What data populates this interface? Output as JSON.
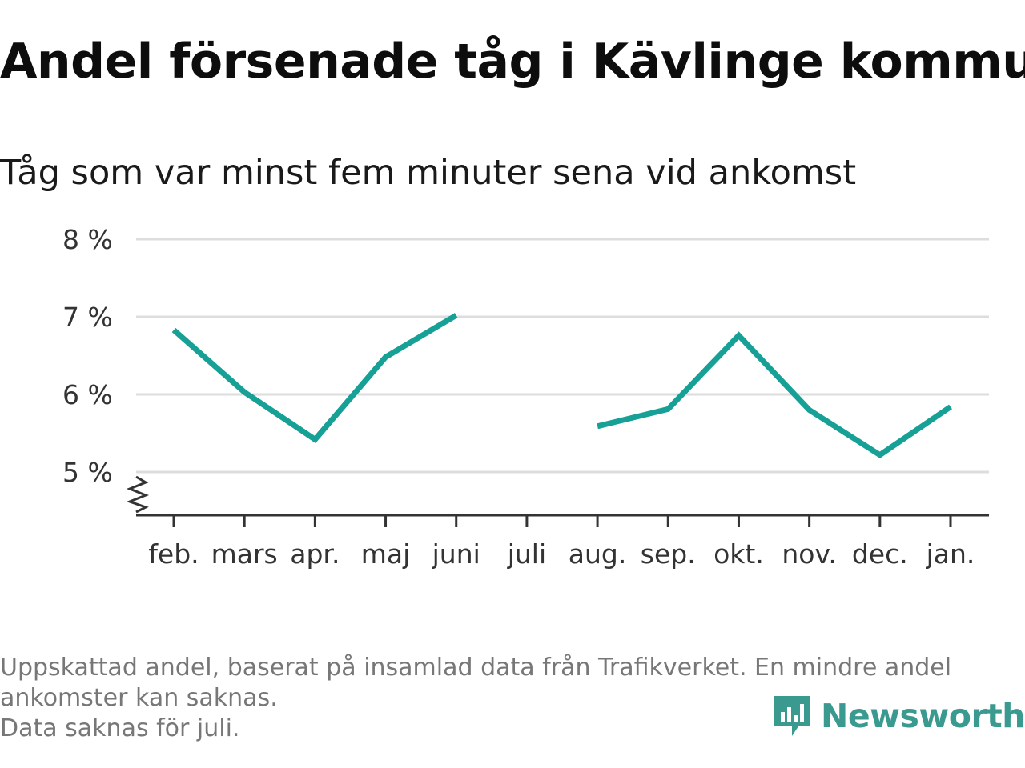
{
  "title": "Andel försenade tåg i Kävlinge kommun",
  "subtitle": "Tåg som var minst fem minuter sena vid ankomst",
  "footer": {
    "line1": "Uppskattad andel, baserat på insamlad data från Trafikverket. En mindre andel",
    "line2": "ankomster kan saknas.",
    "line3": "Data saknas för juli."
  },
  "brand": {
    "name": "Newsworthy",
    "color": "#3a9a8f",
    "icon": "newsworthy-logo-icon"
  },
  "colors": {
    "line": "#16a096",
    "grid": "#dddddd",
    "axis": "#333333"
  },
  "chart_data": {
    "type": "line",
    "title": "Andel försenade tåg i Kävlinge kommun",
    "subtitle": "Tåg som var minst fem minuter sena vid ankomst",
    "xlabel": "",
    "ylabel": "",
    "categories": [
      "feb.",
      "mars",
      "apr.",
      "maj",
      "juni",
      "juli",
      "aug.",
      "sep.",
      "okt.",
      "nov.",
      "dec.",
      "jan."
    ],
    "series": [
      {
        "values": [
          6.83,
          6.03,
          5.42,
          6.48,
          7.02,
          null,
          5.59,
          5.81,
          6.76,
          5.8,
          5.22,
          5.84
        ]
      }
    ],
    "ylim": [
      4.45,
      8
    ],
    "yticks": [
      5,
      6,
      7,
      8
    ],
    "ytick_labels": [
      "5 %",
      "6 %",
      "7 %",
      "8 %"
    ],
    "axis_break": true,
    "grid": "horizontal",
    "legend": "none"
  }
}
